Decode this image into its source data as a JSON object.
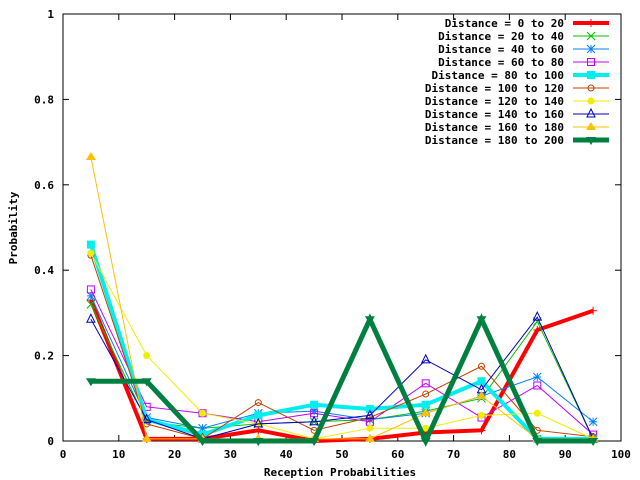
{
  "chart_data": {
    "type": "line",
    "title": "",
    "xlabel": "Reception Probabilities",
    "ylabel": "Probability",
    "xlim": [
      0,
      100
    ],
    "ylim": [
      0,
      1
    ],
    "grid": false,
    "legend_position": "top-right",
    "x": [
      5,
      15,
      25,
      35,
      45,
      55,
      65,
      75,
      85,
      95
    ],
    "x_ticks": [
      "0",
      "10",
      "20",
      "30",
      "40",
      "50",
      "60",
      "70",
      "80",
      "90",
      "100"
    ],
    "y_ticks": [
      "0",
      "0.2",
      "0.4",
      "0.6",
      "0.8",
      "1"
    ],
    "series": [
      {
        "name": "Distance = 0 to 20",
        "color": "#ff0000",
        "marker": "plus",
        "width": 4,
        "values": [
          0.33,
          0.005,
          0.005,
          0.025,
          0.0,
          0.005,
          0.02,
          0.025,
          0.26,
          0.305
        ]
      },
      {
        "name": "Distance = 20 to 40",
        "color": "#00c000",
        "marker": "cross",
        "width": 1,
        "values": [
          0.32,
          0.045,
          0.03,
          0.04,
          0.045,
          0.05,
          0.07,
          0.1,
          0.28,
          0.005
        ]
      },
      {
        "name": "Distance = 40 to 60",
        "color": "#0080ff",
        "marker": "star",
        "width": 1,
        "values": [
          0.34,
          0.055,
          0.03,
          0.065,
          0.07,
          0.05,
          0.065,
          0.105,
          0.15,
          0.045
        ]
      },
      {
        "name": "Distance = 60 to 80",
        "color": "#c000ff",
        "marker": "square",
        "width": 1,
        "values": [
          0.355,
          0.08,
          0.065,
          0.045,
          0.065,
          0.045,
          0.135,
          0.055,
          0.13,
          0.015
        ]
      },
      {
        "name": "Distance = 80 to 100",
        "color": "#00eeee",
        "marker": "filled-square",
        "width": 4,
        "values": [
          0.46,
          0.05,
          0.015,
          0.06,
          0.085,
          0.075,
          0.085,
          0.14,
          0.005,
          0.005
        ]
      },
      {
        "name": "Distance = 100 to 120",
        "color": "#c04000",
        "marker": "circle",
        "width": 1,
        "values": [
          0.435,
          0.04,
          0.005,
          0.09,
          0.025,
          0.055,
          0.11,
          0.175,
          0.025,
          0.01
        ]
      },
      {
        "name": "Distance = 120 to 140",
        "color": "#eeee00",
        "marker": "filled-circle",
        "width": 1,
        "values": [
          0.44,
          0.2,
          0.065,
          0.04,
          0.005,
          0.03,
          0.03,
          0.06,
          0.065,
          0.005
        ]
      },
      {
        "name": "Distance = 140 to 160",
        "color": "#0000c0",
        "marker": "triangle",
        "width": 1,
        "values": [
          0.285,
          0.05,
          0.005,
          0.04,
          0.045,
          0.06,
          0.19,
          0.12,
          0.29,
          0.005
        ]
      },
      {
        "name": "Distance = 160 to 180",
        "color": "#ffc000",
        "marker": "filled-triangle",
        "width": 1,
        "values": [
          0.665,
          0.005,
          0.005,
          0.005,
          0.005,
          0.005,
          0.065,
          0.105,
          0.005,
          0.005
        ]
      },
      {
        "name": "Distance = 180 to 200",
        "color": "#008040",
        "marker": "filled-down-triangle",
        "width": 5,
        "values": [
          0.14,
          0.14,
          0.0,
          0.0,
          0.0,
          0.285,
          0.0,
          0.285,
          0.0,
          0.0
        ]
      }
    ]
  }
}
